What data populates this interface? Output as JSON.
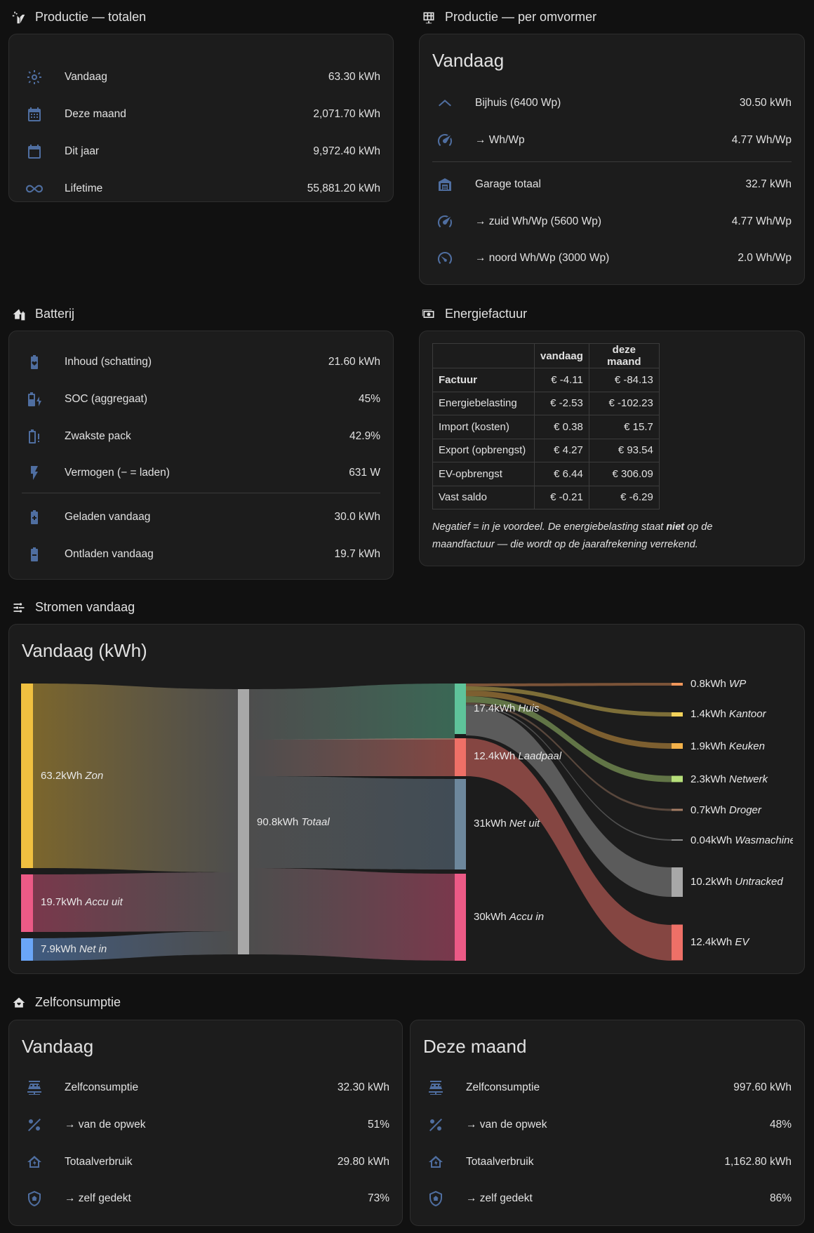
{
  "productie_totalen": {
    "title": "Productie — totalen",
    "rows": [
      {
        "icon": "sun-icon",
        "label": "Vandaag",
        "value": "63.30 kWh"
      },
      {
        "icon": "calendar-month-icon",
        "label": "Deze maand",
        "value": "2,071.70 kWh"
      },
      {
        "icon": "calendar-icon",
        "label": "Dit jaar",
        "value": "9,972.40 kWh"
      },
      {
        "icon": "infinity-icon",
        "label": "Lifetime",
        "value": "55,881.20 kWh"
      }
    ]
  },
  "productie_omvormer": {
    "title": "Productie — per omvormer",
    "heading": "Vandaag",
    "rows": [
      {
        "icon": "roof-icon",
        "label": "Bijhuis (6400 Wp)",
        "value": "30.50 kWh"
      },
      {
        "icon": "speedometer-icon",
        "label": "→ Wh/Wp",
        "value": "4.77 Wh/Wp"
      },
      {
        "icon": "garage-icon",
        "label": "Garage totaal",
        "value": "32.7 kWh"
      },
      {
        "icon": "speedometer-icon",
        "label": "→ zuid Wh/Wp (5600 Wp)",
        "value": "4.77 Wh/Wp"
      },
      {
        "icon": "speedometer-slow-icon",
        "label": "→ noord Wh/Wp (3000 Wp)",
        "value": "2.0 Wh/Wp"
      }
    ]
  },
  "batterij": {
    "title": "Batterij",
    "rows": [
      {
        "icon": "battery-heart-icon",
        "label": "Inhoud (schatting)",
        "value": "21.60 kWh"
      },
      {
        "icon": "battery-charging-icon",
        "label": "SOC (aggregaat)",
        "value": "45%"
      },
      {
        "icon": "battery-alert-icon",
        "label": "Zwakste pack",
        "value": "42.9%"
      },
      {
        "icon": "flash-icon",
        "label": "Vermogen (− = laden)",
        "value": "631 W"
      },
      {
        "icon": "battery-plus-icon",
        "label": "Geladen vandaag",
        "value": "30.0 kWh"
      },
      {
        "icon": "battery-minus-icon",
        "label": "Ontladen vandaag",
        "value": "19.7 kWh"
      }
    ]
  },
  "energiefactuur": {
    "title": "Energiefactuur",
    "columns": [
      "",
      "vandaag",
      "deze maand"
    ],
    "rows": [
      {
        "label": "Factuur",
        "vandaag": "€ -4.11",
        "maand": "€ -84.13"
      },
      {
        "label": "Energiebelasting",
        "vandaag": "€ -2.53",
        "maand": "€ -102.23"
      },
      {
        "label": "Import (kosten)",
        "vandaag": "€ 0.38",
        "maand": "€ 15.7"
      },
      {
        "label": "Export (opbrengst)",
        "vandaag": "€ 4.27",
        "maand": "€ 93.54"
      },
      {
        "label": "EV-opbrengst",
        "vandaag": "€ 6.44",
        "maand": "€ 306.09"
      },
      {
        "label": "Vast saldo",
        "vandaag": "€ -0.21",
        "maand": "€ -6.29"
      }
    ],
    "note_part1": "Negatief = in je voordeel. De energiebelasting staat ",
    "note_bold": "niet",
    "note_part2": " op de maandfactuur — die wordt op de jaarafrekening verrekend."
  },
  "stromen": {
    "title": "Stromen vandaag",
    "heading": "Vandaag (kWh)",
    "sources": [
      {
        "value": "63.2kWh",
        "name": "Zon",
        "color": "#f0c040"
      },
      {
        "value": "19.7kWh",
        "name": "Accu uit",
        "color": "#ec5a86"
      },
      {
        "value": "7.9kWh",
        "name": "Net in",
        "color": "#6aa6f8"
      }
    ],
    "total": {
      "value": "90.8kWh",
      "name": "Totaal",
      "color": "#a8a8a8"
    },
    "sinks": [
      {
        "value": "17.4kWh",
        "name": "Huis",
        "color": "#5ec39a"
      },
      {
        "value": "12.4kWh",
        "name": "Laadpaal",
        "color": "#ee7067"
      },
      {
        "value": "31kWh",
        "name": "Net uit",
        "color": "#6d879c"
      },
      {
        "value": "30kWh",
        "name": "Accu in",
        "color": "#ec5a86"
      }
    ],
    "consumers": [
      {
        "value": "0.8kWh",
        "name": "WP",
        "color": "#f0965a"
      },
      {
        "value": "1.4kWh",
        "name": "Kantoor",
        "color": "#f3d25a"
      },
      {
        "value": "1.9kWh",
        "name": "Keuken",
        "color": "#f4b24a"
      },
      {
        "value": "2.3kWh",
        "name": "Netwerk",
        "color": "#b6df7a"
      },
      {
        "value": "0.7kWh",
        "name": "Droger",
        "color": "#a37c64"
      },
      {
        "value": "0.04kWh",
        "name": "Wasmachine",
        "color": "#8d8d8d"
      },
      {
        "value": "10.2kWh",
        "name": "Untracked",
        "color": "#a8a8a8"
      },
      {
        "value": "12.4kWh",
        "name": "EV",
        "color": "#ee7067"
      }
    ]
  },
  "zelfconsumptie": {
    "title": "Zelfconsumptie",
    "vandaag": {
      "heading": "Vandaag",
      "rows": [
        {
          "icon": "solar-panel-icon",
          "label": "Zelfconsumptie",
          "value": "32.30 kWh"
        },
        {
          "icon": "percent-icon",
          "label": "→ van de opwek",
          "value": "51%"
        },
        {
          "icon": "home-lightning-icon",
          "label": "Totaalverbruik",
          "value": "29.80 kWh"
        },
        {
          "icon": "shield-home-icon",
          "label": "→ zelf gedekt",
          "value": "73%"
        }
      ]
    },
    "maand": {
      "heading": "Deze maand",
      "rows": [
        {
          "icon": "solar-panel-icon",
          "label": "Zelfconsumptie",
          "value": "997.60 kWh"
        },
        {
          "icon": "percent-icon",
          "label": "→ van de opwek",
          "value": "48%"
        },
        {
          "icon": "home-lightning-icon",
          "label": "Totaalverbruik",
          "value": "1,162.80 kWh"
        },
        {
          "icon": "shield-home-icon",
          "label": "→ zelf gedekt",
          "value": "86%"
        }
      ]
    }
  }
}
